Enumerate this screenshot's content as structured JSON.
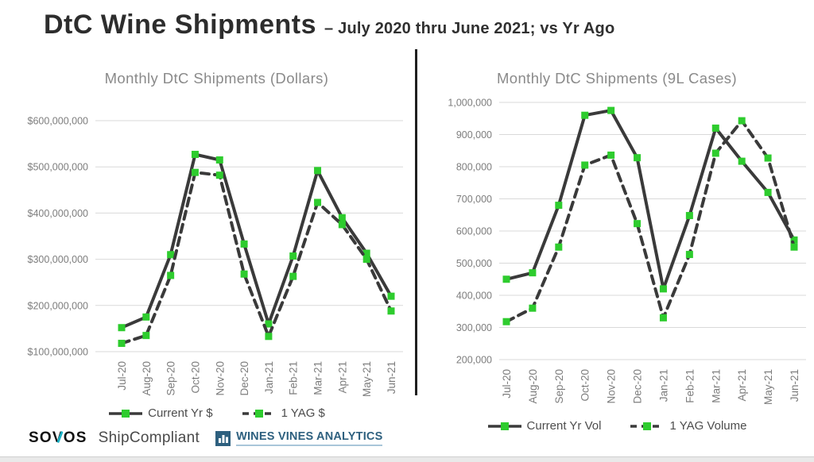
{
  "page": {
    "title": "DtC Wine Shipments",
    "subtitle": "– July 2020 thru June 2021; vs Yr Ago"
  },
  "colors": {
    "line": "#3a3a3a",
    "marker": "#2ecc2e",
    "gridline": "#d9d9d9",
    "tick_text": "#7d7d7d",
    "chart_title": "#8a8a8a",
    "divider": "#1f1f1f",
    "wva_blue": "#2e607f",
    "sovos_teal": "#19b0c4"
  },
  "footer": {
    "sovos_prefix": "SO",
    "sovos_v": "V",
    "sovos_suffix": "OS",
    "shipcompliant": "ShipCompliant",
    "wva_label": "WINES VINES ANALYTICS"
  },
  "chart_data": [
    {
      "type": "line",
      "title": "Monthly DtC Shipments (Dollars)",
      "categories": [
        "Jul-20",
        "Aug-20",
        "Sep-20",
        "Oct-20",
        "Nov-20",
        "Dec-20",
        "Jan-21",
        "Feb-21",
        "Mar-21",
        "Apr-21",
        "May-21",
        "Jun-21"
      ],
      "series": [
        {
          "name": "Current Yr $",
          "style": "solid",
          "values": [
            152000000,
            175000000,
            310000000,
            527000000,
            515000000,
            333000000,
            160000000,
            307000000,
            492000000,
            390000000,
            313000000,
            220000000
          ]
        },
        {
          "name": "1 YAG $",
          "style": "dashed",
          "values": [
            118000000,
            135000000,
            265000000,
            488000000,
            482000000,
            268000000,
            133000000,
            263000000,
            423000000,
            375000000,
            300000000,
            188000000
          ]
        }
      ],
      "ylim": [
        100000000,
        600000000
      ],
      "ytick_step": 100000000,
      "yticks": [
        "$600,000,000",
        "$500,000,000",
        "$400,000,000",
        "$300,000,000",
        "$200,000,000",
        "$100,000,000"
      ],
      "grid": true,
      "legend_position": "bottom"
    },
    {
      "type": "line",
      "title": "Monthly DtC Shipments (9L Cases)",
      "categories": [
        "Jul-20",
        "Aug-20",
        "Sep-20",
        "Oct-20",
        "Nov-20",
        "Dec-20",
        "Jan-21",
        "Feb-21",
        "Mar-21",
        "Apr-21",
        "May-21",
        "Jun-21"
      ],
      "series": [
        {
          "name": "Current Yr Vol",
          "style": "solid",
          "values": [
            450000,
            470000,
            680000,
            960000,
            975000,
            828000,
            420000,
            648000,
            920000,
            817000,
            720000,
            572000
          ]
        },
        {
          "name": "1 YAG Volume",
          "style": "dashed",
          "values": [
            318000,
            360000,
            550000,
            805000,
            836000,
            623000,
            330000,
            527000,
            842000,
            943000,
            827000,
            550000
          ]
        }
      ],
      "ylim": [
        200000,
        1000000
      ],
      "ytick_step": 100000,
      "yticks": [
        "1,000,000",
        "900,000",
        "800,000",
        "700,000",
        "600,000",
        "500,000",
        "400,000",
        "300,000",
        "200,000"
      ],
      "grid": true,
      "legend_position": "bottom"
    }
  ]
}
